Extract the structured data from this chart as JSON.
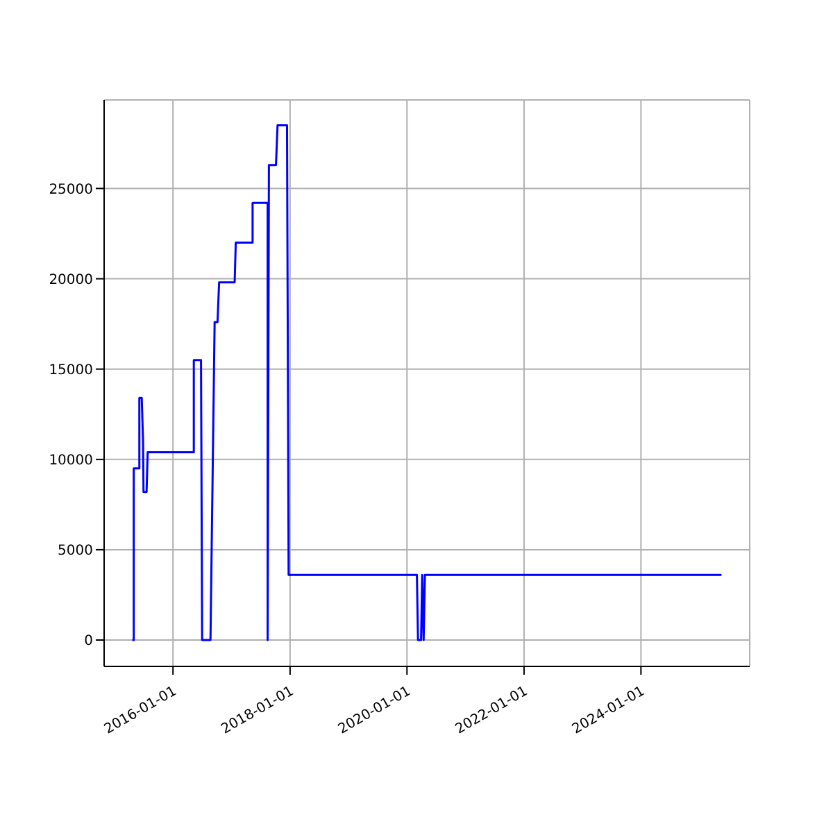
{
  "chart_data": {
    "type": "line",
    "x": [
      "2015-04-22",
      "2015-05-01",
      "2015-05-01",
      "2015-06-05",
      "2015-06-05",
      "2015-06-20",
      "2015-06-28",
      "2015-07-01",
      "2015-07-20",
      "2015-07-27",
      "2016-05-10",
      "2016-05-10",
      "2016-06-24",
      "2016-07-01",
      "2016-08-22",
      "2016-09-17",
      "2016-10-05",
      "2016-10-15",
      "2017-01-20",
      "2017-01-27",
      "2017-05-12",
      "2017-05-12",
      "2017-08-14",
      "2017-08-14",
      "2017-08-22",
      "2017-10-05",
      "2017-10-15",
      "2017-12-13",
      "2017-12-23",
      "2020-03-03",
      "2020-03-10",
      "2020-03-29",
      "2020-04-05",
      "2020-04-14",
      "2020-04-22",
      "2025-05-18"
    ],
    "series": [
      {
        "color": "#0000ff",
        "values": [
          0,
          0,
          9500,
          9500,
          13400,
          13400,
          11000,
          8200,
          8200,
          10400,
          10400,
          15500,
          15500,
          0,
          0,
          17600,
          17600,
          19800,
          19800,
          22000,
          22000,
          24200,
          24200,
          0,
          26300,
          26300,
          28500,
          28500,
          3600,
          3600,
          0,
          0,
          3600,
          0,
          3600,
          3600
        ]
      }
    ],
    "xlim": [
      "2014-10-28",
      "2025-11-10"
    ],
    "xticks": [
      "2016-01-01",
      "2018-01-01",
      "2020-01-01",
      "2022-01-01",
      "2024-01-01"
    ],
    "ylim": [
      -1460,
      29900
    ],
    "yticks": [
      0,
      5000,
      10000,
      15000,
      20000,
      25000
    ],
    "grid": true,
    "legend": false,
    "marker": "none",
    "line_style": "solid"
  }
}
